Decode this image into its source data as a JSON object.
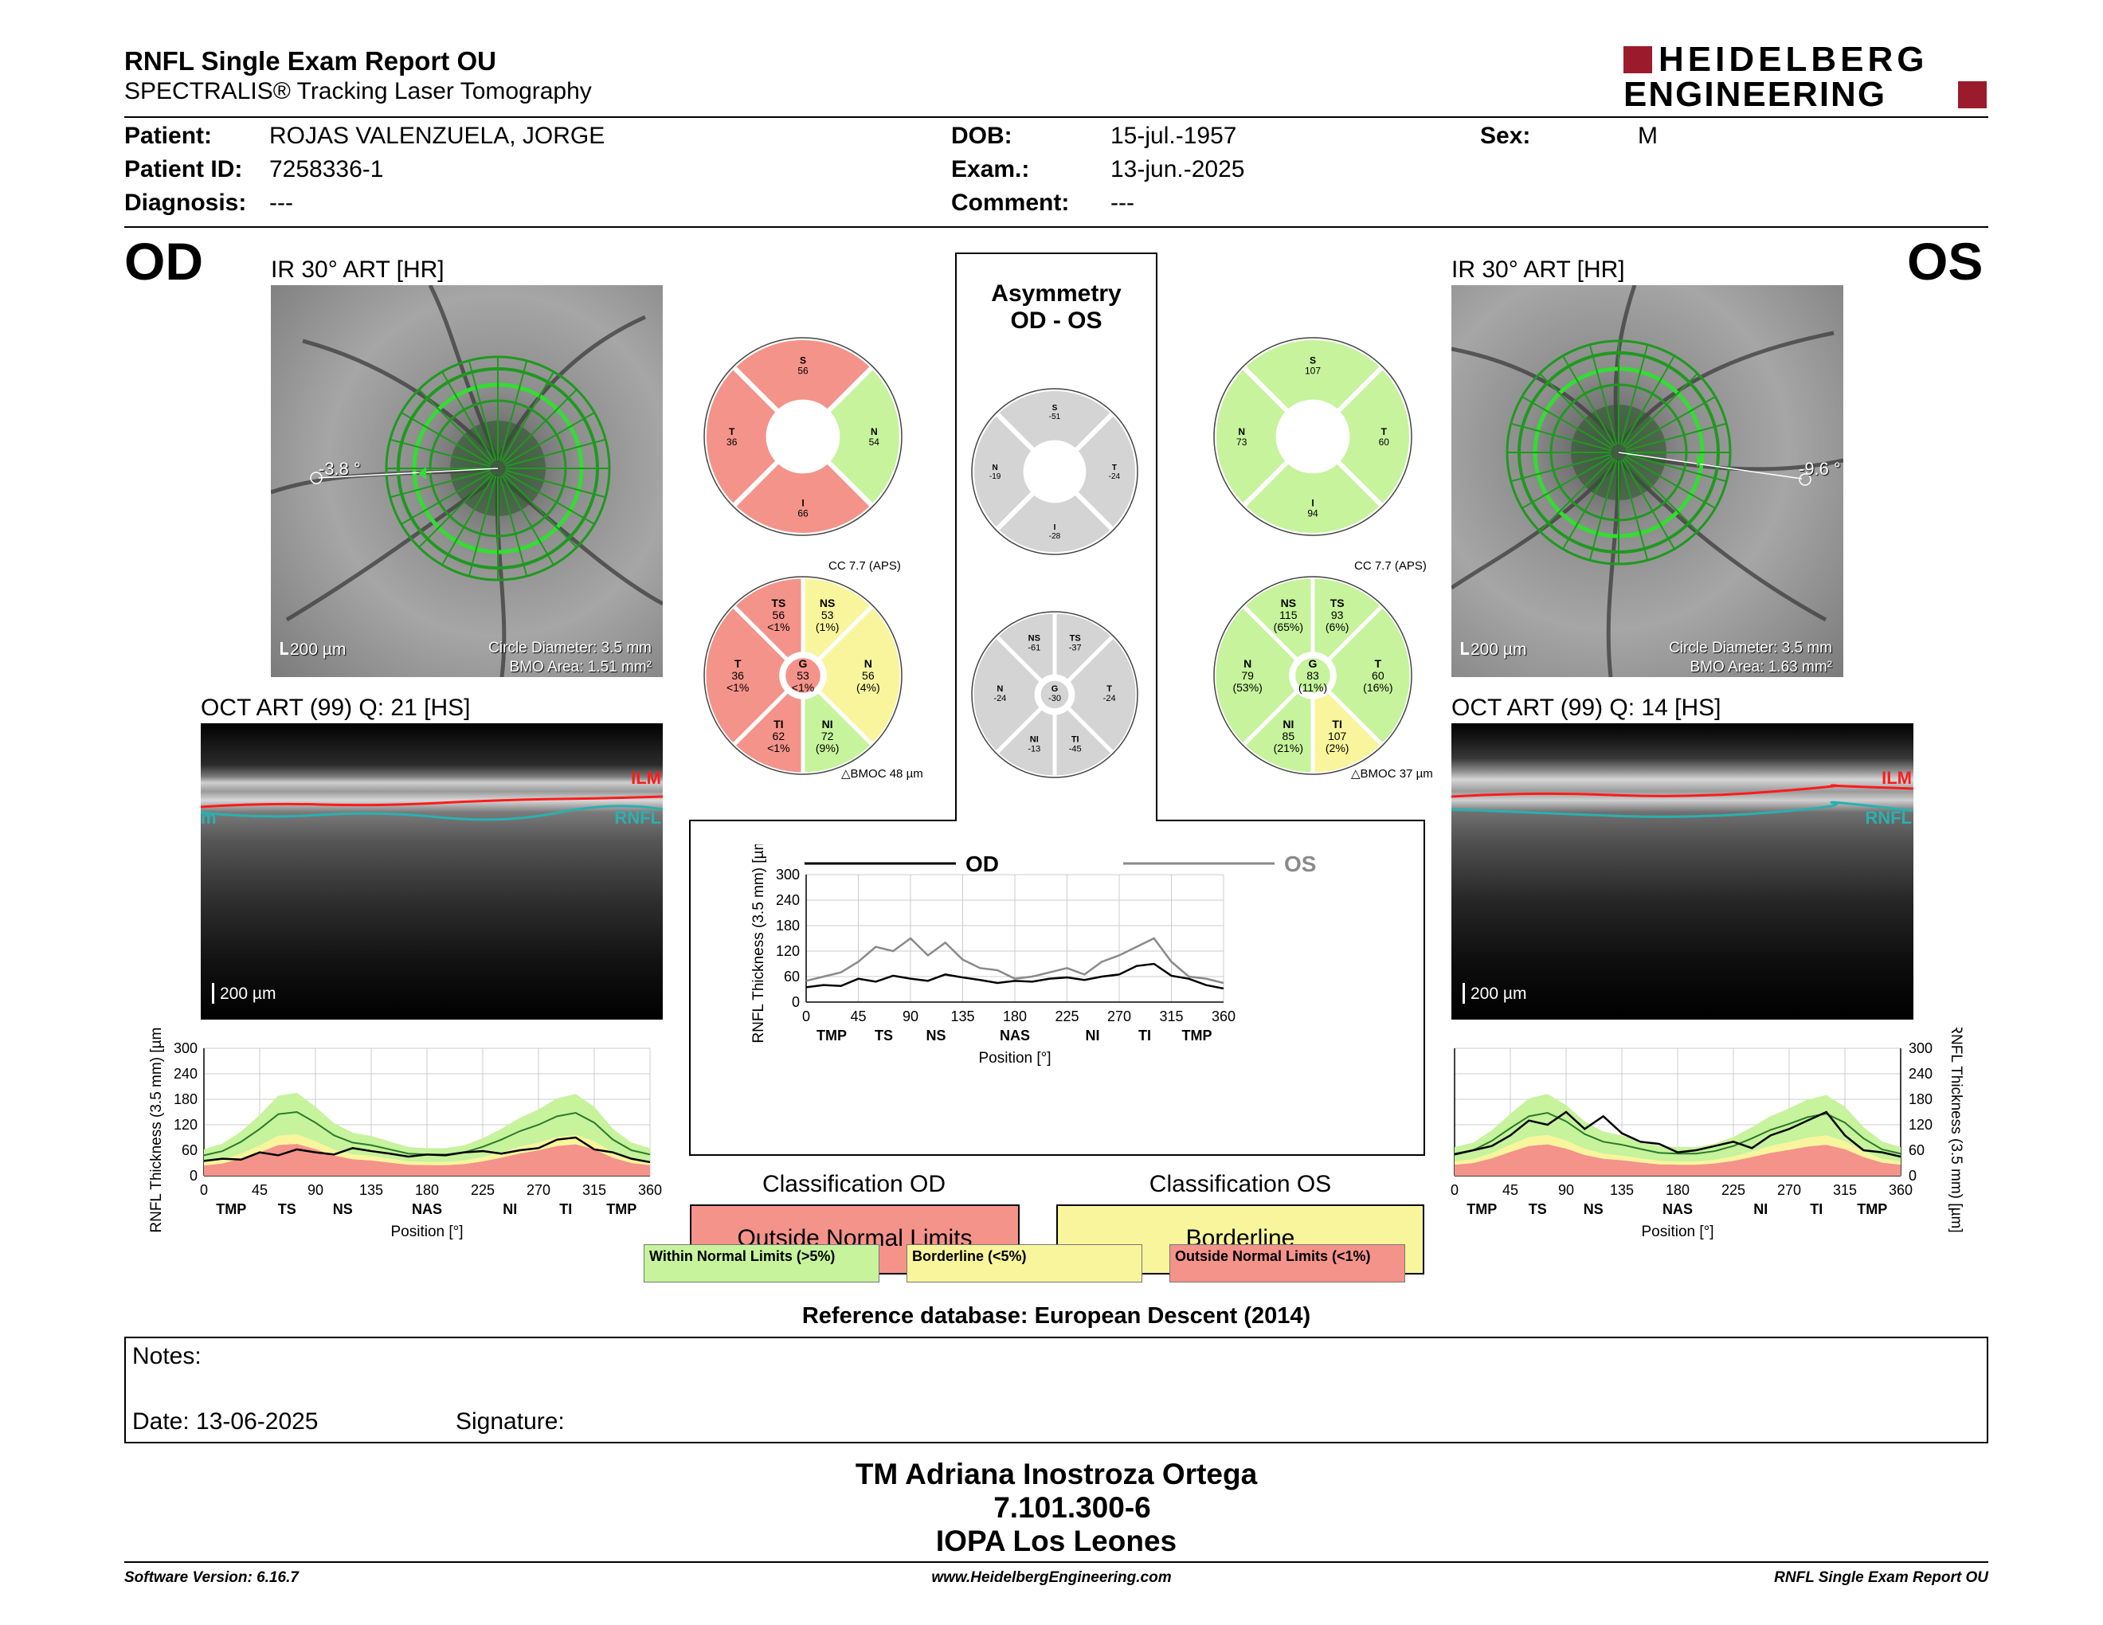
{
  "header": {
    "title": "RNFL Single Exam Report OU",
    "subtitle": "SPECTRALIS® Tracking Laser Tomography",
    "logo_line1": "HEIDELBERG",
    "logo_line2": "ENGINEERING",
    "brand_color": "#9b1b2c"
  },
  "patient": {
    "patient_label": "Patient:",
    "patient_value": "ROJAS VALENZUELA, JORGE",
    "id_label": "Patient ID:",
    "id_value": "7258336-1",
    "diagnosis_label": "Diagnosis:",
    "diagnosis_value": "---",
    "dob_label": "DOB:",
    "dob_value": "15-jul.-1957",
    "exam_label": "Exam.:",
    "exam_value": "13-jun.-2025",
    "comment_label": "Comment:",
    "comment_value": "---",
    "sex_label": "Sex:",
    "sex_value": "M"
  },
  "od": {
    "eye": "OD",
    "ir_title": "IR 30° ART [HR]",
    "angle": "-3.8 °",
    "scale": "200 µm",
    "circle_diameter": "Circle Diameter: 3.5 mm",
    "bmo_area": "BMO Area: 1.51 mm²",
    "oct_title": "OCT ART (99) Q: 21 [HS]",
    "oct_scale": "200 µm",
    "ilm": "ILM",
    "rnfl": "RNFL",
    "rnfl_edge": "m",
    "cc": "CC 7.7 (APS)",
    "bmoc": "BMOC 48 µm",
    "quad": {
      "S": {
        "label": "S",
        "value": "56"
      },
      "T": {
        "label": "T",
        "value": "36"
      },
      "N": {
        "label": "N",
        "value": "54"
      },
      "I": {
        "label": "I",
        "value": "66"
      }
    },
    "sectors": {
      "TS": {
        "label": "TS",
        "value": "56",
        "pct": "<1%"
      },
      "NS": {
        "label": "NS",
        "value": "53",
        "pct": "(1%)"
      },
      "N": {
        "label": "N",
        "value": "56",
        "pct": "(4%)"
      },
      "NI": {
        "label": "NI",
        "value": "72",
        "pct": "(9%)"
      },
      "TI": {
        "label": "TI",
        "value": "62",
        "pct": "<1%"
      },
      "T": {
        "label": "T",
        "value": "36",
        "pct": "<1%"
      },
      "G": {
        "label": "G",
        "value": "53",
        "pct": "<1%"
      }
    },
    "classification_title": "Classification OD",
    "classification_value": "Outside Normal Limits"
  },
  "os": {
    "eye": "OS",
    "ir_title": "IR 30° ART [HR]",
    "angle": "-9.6 °",
    "scale": "200 µm",
    "circle_diameter": "Circle Diameter: 3.5 mm",
    "bmo_area": "BMO Area: 1.63 mm²",
    "oct_title": "OCT ART (99) Q: 14 [HS]",
    "oct_scale": "200 µm",
    "ilm": "ILM",
    "rnfl": "RNFL",
    "cc": "CC 7.7 (APS)",
    "bmoc": "BMOC 37 µm",
    "quad": {
      "S": {
        "label": "S",
        "value": "107"
      },
      "N": {
        "label": "N",
        "value": "73"
      },
      "T": {
        "label": "T",
        "value": "60"
      },
      "I": {
        "label": "I",
        "value": "94"
      }
    },
    "sectors": {
      "NS": {
        "label": "NS",
        "value": "115",
        "pct": "(65%)"
      },
      "TS": {
        "label": "TS",
        "value": "93",
        "pct": "(6%)"
      },
      "T": {
        "label": "T",
        "value": "60",
        "pct": "(16%)"
      },
      "TI": {
        "label": "TI",
        "value": "107",
        "pct": "(2%)"
      },
      "NI": {
        "label": "NI",
        "value": "85",
        "pct": "(21%)"
      },
      "N": {
        "label": "N",
        "value": "79",
        "pct": "(53%)"
      },
      "G": {
        "label": "G",
        "value": "83",
        "pct": "(11%)"
      }
    },
    "classification_title": "Classification OS",
    "classification_value": "Borderline"
  },
  "asymmetry": {
    "title1": "Asymmetry",
    "title2": "OD - OS",
    "quad": {
      "S": {
        "label": "S",
        "value": "-51"
      },
      "N": {
        "label": "N",
        "value": "-19"
      },
      "T": {
        "label": "T",
        "value": "-24"
      },
      "I": {
        "label": "I",
        "value": "-28"
      }
    },
    "sectors": {
      "NS": {
        "label": "NS",
        "value": "-61"
      },
      "TS": {
        "label": "TS",
        "value": "-37"
      },
      "T": {
        "label": "T",
        "value": "-24"
      },
      "TI": {
        "label": "TI",
        "value": "-45"
      },
      "NI": {
        "label": "NI",
        "value": "-13"
      },
      "N": {
        "label": "N",
        "value": "-24"
      },
      "G": {
        "label": "G",
        "value": "-30"
      }
    },
    "legend_od": "OD",
    "legend_os": "OS"
  },
  "charts": {
    "ylabel": "RNFL Thickness (3.5 mm) [µm]",
    "xlabel": "Position [°]",
    "yticks": [
      "0",
      "60",
      "120",
      "180",
      "240",
      "300"
    ],
    "xticks": [
      "0",
      "45",
      "90",
      "135",
      "180",
      "225",
      "270",
      "315",
      "360"
    ],
    "od_sectors": [
      "TMP",
      "TS",
      "NS",
      "NAS",
      "NI",
      "TI",
      "TMP"
    ],
    "os_sectors": [
      "TMP",
      "TS",
      "NS",
      "NAS",
      "NI",
      "TI",
      "TMP"
    ],
    "asym_sectors": [
      "TMP",
      "TS",
      "NS",
      "NAS",
      "NI",
      "TI",
      "TMP"
    ]
  },
  "chart_data": [
    {
      "type": "area",
      "name": "OD",
      "x": [
        0,
        15,
        30,
        45,
        60,
        75,
        90,
        105,
        120,
        135,
        150,
        165,
        180,
        195,
        210,
        225,
        240,
        255,
        270,
        285,
        300,
        315,
        330,
        345,
        360
      ],
      "series": [
        {
          "name": "OD",
          "values": [
            35,
            40,
            38,
            55,
            48,
            62,
            55,
            50,
            65,
            58,
            52,
            45,
            50,
            48,
            55,
            58,
            52,
            60,
            65,
            85,
            90,
            62,
            55,
            40,
            32
          ]
        },
        {
          "name": "Normal mean",
          "values": [
            48,
            58,
            80,
            110,
            145,
            150,
            125,
            95,
            78,
            72,
            62,
            52,
            50,
            50,
            55,
            68,
            85,
            105,
            120,
            140,
            148,
            125,
            85,
            60,
            50
          ]
        }
      ],
      "ylim": [
        0,
        300
      ],
      "xlim": [
        0,
        360
      ]
    },
    {
      "type": "area",
      "name": "OS",
      "x": [
        0,
        15,
        30,
        45,
        60,
        75,
        90,
        105,
        120,
        135,
        150,
        165,
        180,
        195,
        210,
        225,
        240,
        255,
        270,
        285,
        300,
        315,
        330,
        345,
        360
      ],
      "series": [
        {
          "name": "OS",
          "values": [
            50,
            60,
            70,
            95,
            130,
            120,
            150,
            110,
            140,
            100,
            80,
            75,
            55,
            60,
            70,
            80,
            65,
            95,
            110,
            130,
            150,
            95,
            60,
            55,
            45
          ]
        },
        {
          "name": "Normal mean",
          "values": [
            52,
            60,
            82,
            112,
            140,
            148,
            128,
            98,
            80,
            73,
            63,
            54,
            52,
            52,
            58,
            70,
            88,
            108,
            122,
            138,
            146,
            125,
            88,
            62,
            52
          ]
        }
      ],
      "ylim": [
        0,
        300
      ],
      "xlim": [
        0,
        360
      ]
    },
    {
      "type": "line",
      "name": "Asymmetry",
      "x": [
        0,
        15,
        30,
        45,
        60,
        75,
        90,
        105,
        120,
        135,
        150,
        165,
        180,
        195,
        210,
        225,
        240,
        255,
        270,
        285,
        300,
        315,
        330,
        345,
        360
      ],
      "series": [
        {
          "name": "OD",
          "values": [
            35,
            40,
            38,
            55,
            48,
            62,
            55,
            50,
            65,
            58,
            52,
            45,
            50,
            48,
            55,
            58,
            52,
            60,
            65,
            85,
            90,
            62,
            55,
            40,
            32
          ]
        },
        {
          "name": "OS",
          "values": [
            50,
            60,
            70,
            95,
            130,
            120,
            150,
            110,
            140,
            100,
            80,
            75,
            55,
            60,
            70,
            80,
            65,
            95,
            110,
            130,
            150,
            95,
            60,
            55,
            45
          ]
        }
      ],
      "ylim": [
        0,
        300
      ],
      "xlim": [
        0,
        360
      ]
    }
  ],
  "legend": {
    "wnl": "Within Normal Limits (>5%)",
    "bl": "Borderline (<5%)",
    "onl": "Outside Normal Limits (<1%)"
  },
  "colors": {
    "green": "#c6f39c",
    "yellow": "#f8f59c",
    "red": "#f4938a",
    "gray": "#d4d4d4",
    "od_line": "#000000",
    "os_line": "#8a8a8a"
  },
  "reference": "Reference database: European Descent (2014)",
  "notes": {
    "notes_label": "Notes:",
    "date_label": "Date: 13-06-2025",
    "signature_label": "Signature:"
  },
  "signature_block": {
    "line1": "TM Adriana Inostroza Ortega",
    "line2": "7.101.300-6",
    "line3": "IOPA Los Leones"
  },
  "footer": {
    "left": "Software Version: 6.16.7",
    "center": "www.HeidelbergEngineering.com",
    "right": "RNFL Single Exam Report OU"
  }
}
